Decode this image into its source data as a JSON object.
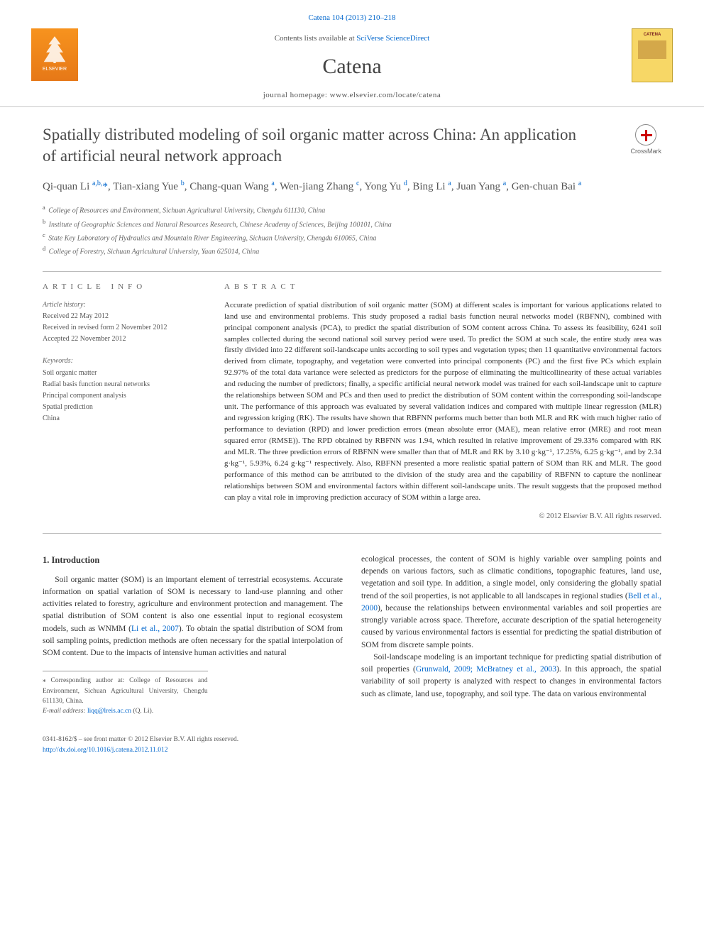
{
  "header": {
    "citation": "Catena 104 (2013) 210–218",
    "contents_prefix": "Contents lists available at ",
    "contents_link": "SciVerse ScienceDirect",
    "journal_name": "Catena",
    "homepage_label": "journal homepage: www.elsevier.com/locate/catena",
    "publisher_name": "ELSEVIER",
    "cover_label": "CATENA"
  },
  "article": {
    "title": "Spatially distributed modeling of soil organic matter across China: An application of artificial neural network approach",
    "crossmark_label": "CrossMark",
    "authors_html": "Qi-quan Li <sup>a,b,</sup><span class='corr'>*</span>, Tian-xiang Yue <sup>b</sup>, Chang-quan Wang <sup>a</sup>, Wen-jiang Zhang <sup>c</sup>, Yong Yu <sup>d</sup>, Bing Li <sup>a</sup>, Juan Yang <sup>a</sup>, Gen-chuan Bai <sup>a</sup>",
    "affiliations": [
      {
        "sup": "a",
        "text": "College of Resources and Environment, Sichuan Agricultural University, Chengdu 611130, China"
      },
      {
        "sup": "b",
        "text": "Institute of Geographic Sciences and Natural Resources Research, Chinese Academy of Sciences, Beijing 100101, China"
      },
      {
        "sup": "c",
        "text": "State Key Laboratory of Hydraulics and Mountain River Engineering, Sichuan University, Chengdu 610065, China"
      },
      {
        "sup": "d",
        "text": "College of Forestry, Sichuan Agricultural University, Yaan 625014, China"
      }
    ]
  },
  "info": {
    "section_label": "ARTICLE INFO",
    "history_label": "Article history:",
    "history": [
      "Received 22 May 2012",
      "Received in revised form 2 November 2012",
      "Accepted 22 November 2012"
    ],
    "keywords_label": "Keywords:",
    "keywords": [
      "Soil organic matter",
      "Radial basis function neural networks",
      "Principal component analysis",
      "Spatial prediction",
      "China"
    ]
  },
  "abstract": {
    "section_label": "ABSTRACT",
    "text": "Accurate prediction of spatial distribution of soil organic matter (SOM) at different scales is important for various applications related to land use and environmental problems. This study proposed a radial basis function neural networks model (RBFNN), combined with principal component analysis (PCA), to predict the spatial distribution of SOM content across China. To assess its feasibility, 6241 soil samples collected during the second national soil survey period were used. To predict the SOM at such scale, the entire study area was firstly divided into 22 different soil-landscape units according to soil types and vegetation types; then 11 quantitative environmental factors derived from climate, topography, and vegetation were converted into principal components (PC) and the first five PCs which explain 92.97% of the total data variance were selected as predictors for the purpose of eliminating the multicollinearity of these actual variables and reducing the number of predictors; finally, a specific artificial neural network model was trained for each soil-landscape unit to capture the relationships between SOM and PCs and then used to predict the distribution of SOM content within the corresponding soil-landscape unit. The performance of this approach was evaluated by several validation indices and compared with multiple linear regression (MLR) and regression kriging (RK). The results have shown that RBFNN performs much better than both MLR and RK with much higher ratio of performance to deviation (RPD) and lower prediction errors (mean absolute error (MAE), mean relative error (MRE) and root mean squared error (RMSE)). The RPD obtained by RBFNN was 1.94, which resulted in relative improvement of 29.33% compared with RK and MLR. The three prediction errors of RBFNN were smaller than that of MLR and RK by 3.10 g·kg⁻¹, 17.25%, 6.25 g·kg⁻¹, and by 2.34 g·kg⁻¹, 5.93%, 6.24 g·kg⁻¹ respectively. Also, RBFNN presented a more realistic spatial pattern of SOM than RK and MLR. The good performance of this method can be attributed to the division of the study area and the capability of RBFNN to capture the nonlinear relationships between SOM and environmental factors within different soil-landscape units. The result suggests that the proposed method can play a vital role in improving prediction accuracy of SOM within a large area.",
    "copyright": "© 2012 Elsevier B.V. All rights reserved."
  },
  "body": {
    "intro_heading": "1. Introduction",
    "col1_p1": "Soil organic matter (SOM) is an important element of terrestrial ecosystems. Accurate information on spatial variation of SOM is necessary to land-use planning and other activities related to forestry, agriculture and environment protection and management. The spatial distribution of SOM content is also one essential input to regional ecosystem models, such as WNMM (Li et al., 2007). To obtain the spatial distribution of SOM from soil sampling points, prediction methods are often necessary for the spatial interpolation of SOM content. Due to the impacts of intensive human activities and natural",
    "col2_p1": "ecological processes, the content of SOM is highly variable over sampling points and depends on various factors, such as climatic conditions, topographic features, land use, vegetation and soil type. In addition, a single model, only considering the globally spatial trend of the soil properties, is not applicable to all landscapes in regional studies (Bell et al., 2000), because the relationships between environmental variables and soil properties are strongly variable across space. Therefore, accurate description of the spatial heterogeneity caused by various environmental factors is essential for predicting the spatial distribution of SOM from discrete sample points.",
    "col2_p2": "Soil-landscape modeling is an important technique for predicting spatial distribution of soil properties (Grunwald, 2009; McBratney et al., 2003). In this approach, the spatial variability of soil property is analyzed with respect to changes in environmental factors such as climate, land use, topography, and soil type. The data on various environmental",
    "ref1": "Li et al., 2007",
    "ref2": "Bell et al., 2000",
    "ref3": "Grunwald, 2009; McBratney et al., 2003"
  },
  "footnotes": {
    "corr": "⁎ Corresponding author at: College of Resources and Environment, Sichuan Agricultural University, Chengdu 611130, China.",
    "email_label": "E-mail address: ",
    "email": "liqq@lreis.ac.cn",
    "email_who": " (Q. Li)."
  },
  "footer": {
    "line1": "0341-8162/$ – see front matter © 2012 Elsevier B.V. All rights reserved.",
    "doi": "http://dx.doi.org/10.1016/j.catena.2012.11.012"
  },
  "colors": {
    "link": "#0066cc",
    "text": "#333333",
    "muted": "#666666",
    "rule": "#bbbbbb"
  }
}
